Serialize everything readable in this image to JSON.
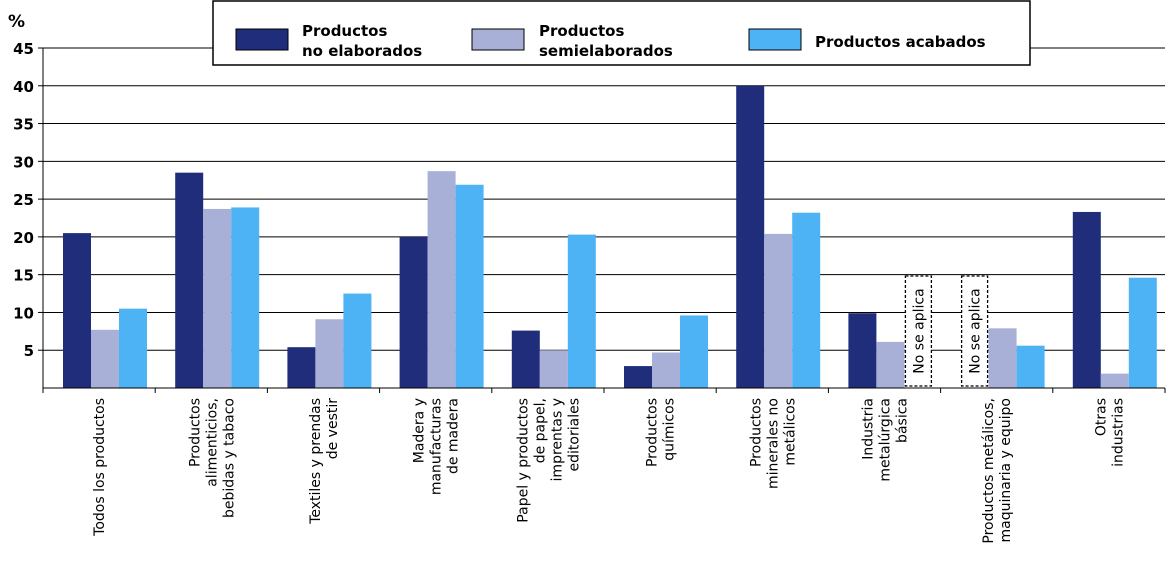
{
  "chart_data": {
    "type": "bar",
    "y_unit_label": "%",
    "categories": [
      [
        "Todos los productos"
      ],
      [
        "Productos",
        "alimenticios,",
        "bebidas y tabaco"
      ],
      [
        "Textiles y prendas",
        "de vestir"
      ],
      [
        "Madera y",
        "manufacturas",
        "de madera"
      ],
      [
        "Papel y productos",
        "de papel,",
        "imprentas y",
        "editoriales"
      ],
      [
        "Productos",
        "químicos"
      ],
      [
        "Productos",
        "minerales no",
        "metálicos"
      ],
      [
        "Industria",
        "metalúrgica",
        "básica"
      ],
      [
        "Productos metálicos,",
        "maquinaria y equipo"
      ],
      [
        "Otras",
        "industrias"
      ]
    ],
    "series": [
      {
        "name": [
          "Productos",
          "no elaborados"
        ],
        "color": "#1f2d7b",
        "values": [
          20.5,
          28.5,
          5.4,
          20.0,
          7.6,
          2.9,
          40.0,
          9.9,
          null,
          23.3
        ]
      },
      {
        "name": [
          "Productos",
          "semielaborados"
        ],
        "color": "#a8b0d8",
        "values": [
          7.7,
          23.7,
          9.1,
          28.7,
          5.0,
          4.7,
          20.4,
          6.1,
          7.9,
          1.9
        ]
      },
      {
        "name": [
          "Productos acabados"
        ],
        "color": "#4db3f5",
        "values": [
          10.5,
          23.9,
          12.5,
          26.9,
          20.3,
          9.6,
          23.2,
          null,
          5.6,
          14.6
        ]
      }
    ],
    "annotations": [
      {
        "category_index": 7,
        "series_index": 2,
        "text": "No se aplica"
      },
      {
        "category_index": 8,
        "series_index": 0,
        "text": "No se aplica"
      }
    ],
    "ylim": [
      0,
      45
    ],
    "yticks": [
      5,
      10,
      15,
      20,
      25,
      30,
      35,
      40,
      45
    ],
    "grid": true,
    "legend_position": "top"
  }
}
